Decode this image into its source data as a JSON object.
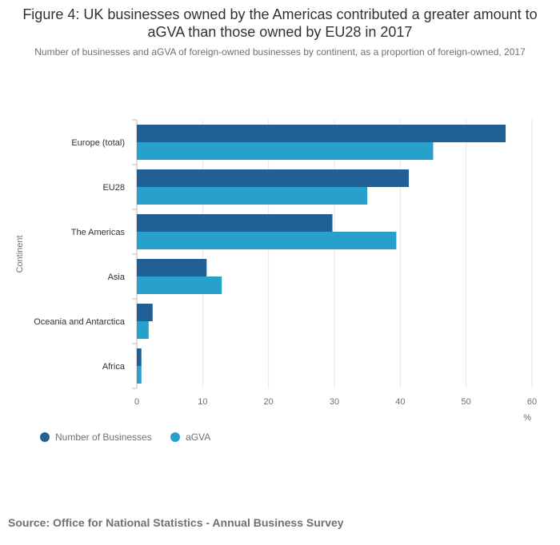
{
  "title": "Figure 4: UK businesses owned by the Americas contributed a greater amount to aGVA than those owned by EU28 in 2017",
  "subtitle": "Number of businesses and aGVA of foreign-owned businesses by continent, as a proportion of foreign-owned, 2017",
  "source": "Source: Office for National Statistics - Annual Business Survey",
  "colors": {
    "number_of_businesses": "#206095",
    "agva": "#27a0cc"
  },
  "chart_data": {
    "type": "bar",
    "orientation": "horizontal",
    "categories": [
      "Europe (total)",
      "EU28",
      "The Americas",
      "Asia",
      "Oceania and Antarctica",
      "Africa"
    ],
    "series": [
      {
        "name": "Number of Businesses",
        "values": [
          56.0,
          41.3,
          29.7,
          10.6,
          2.4,
          0.7
        ]
      },
      {
        "name": "aGVA",
        "values": [
          45.0,
          35.0,
          39.4,
          12.9,
          1.8,
          0.7
        ]
      }
    ],
    "xlabel": "%",
    "ylabel": "Continent",
    "xlim": [
      0,
      60
    ],
    "xticks": [
      0,
      10,
      20,
      30,
      40,
      50,
      60
    ],
    "grid": true,
    "legend_position": "bottom-left"
  }
}
